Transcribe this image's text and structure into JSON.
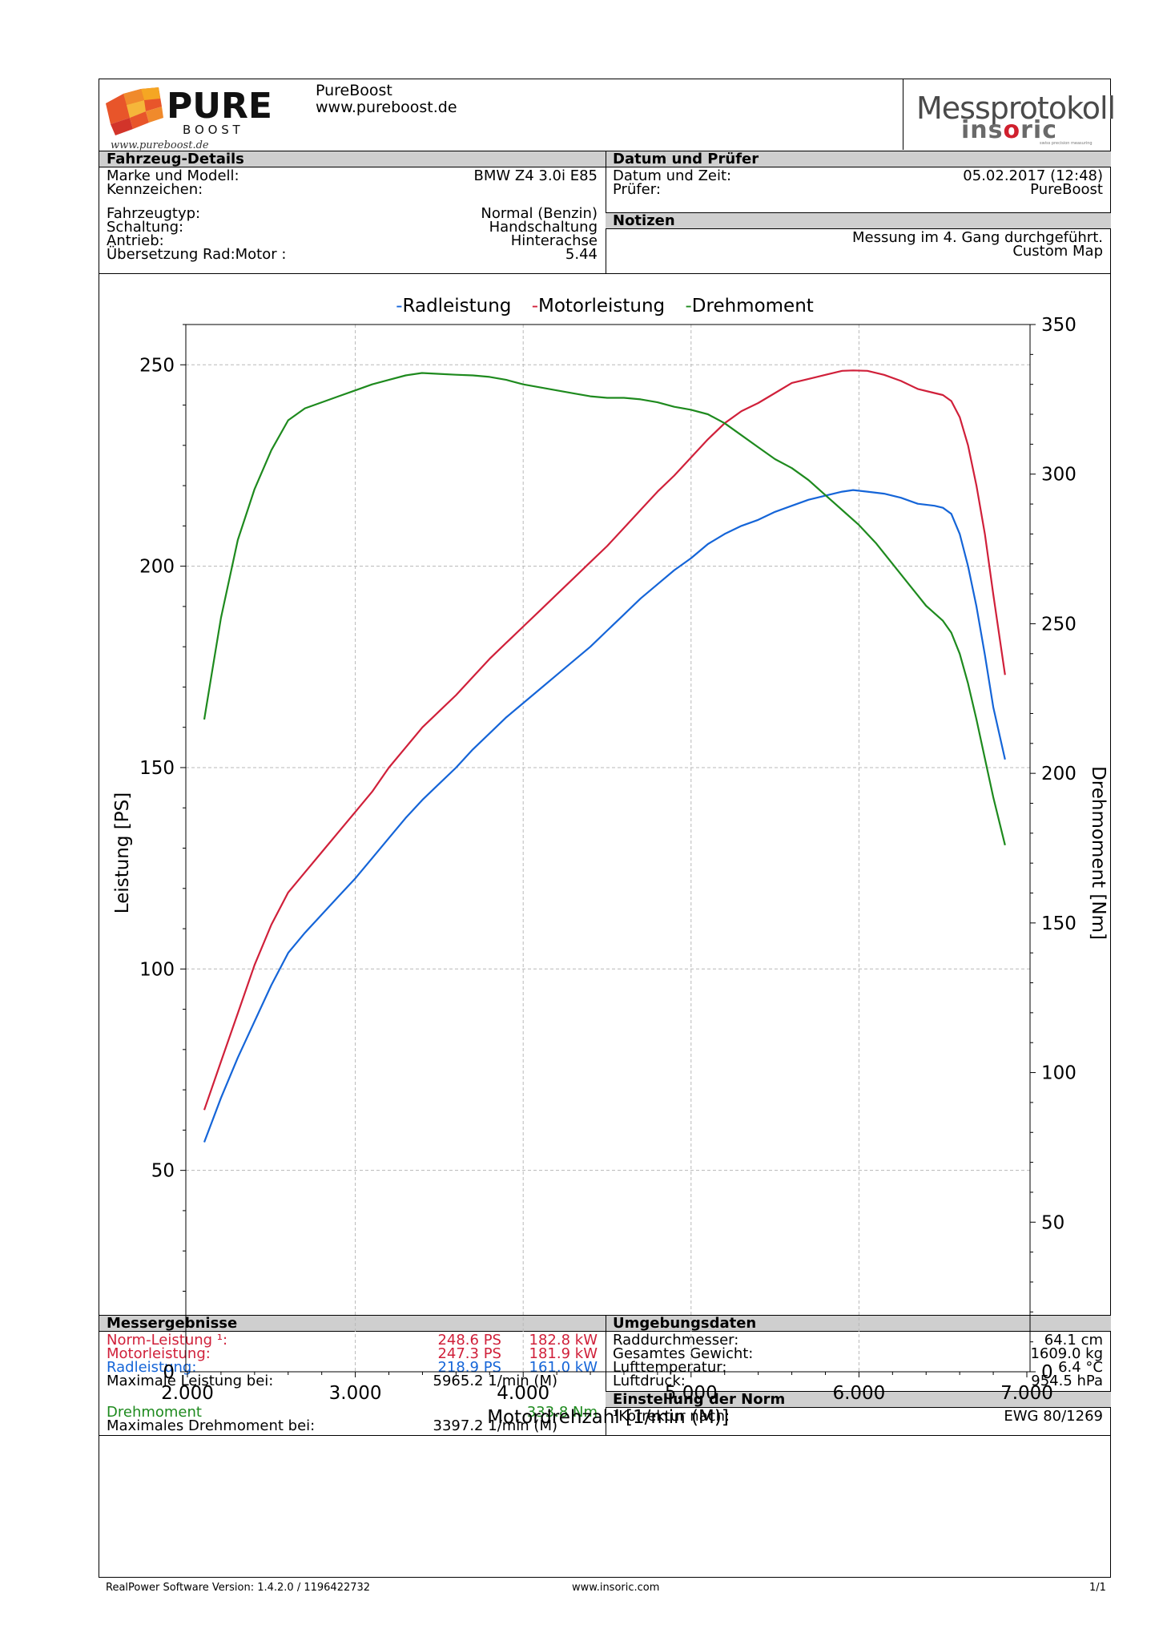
{
  "header": {
    "company_name": "PureBoost",
    "company_url": "www.pureboost.de",
    "logo_word": "PURE",
    "logo_sub": "B O O S T",
    "logo_script": "www.pureboost.de",
    "report_title": "Messprotokoll",
    "brand_pre": "ins",
    "brand_o": "o",
    "brand_post": "ric",
    "brand_tagline": "swiss precision measuring"
  },
  "vehicle": {
    "section_title": "Fahrzeug-Details",
    "rows": [
      {
        "label": "Marke und Modell:",
        "value": "BMW Z4 3.0i E85"
      },
      {
        "label": "Kennzeichen:",
        "value": ""
      },
      {
        "label": "Fahrzeugtyp:",
        "value": "Normal (Benzin)"
      },
      {
        "label": "Schaltung:",
        "value": "Handschaltung"
      },
      {
        "label": "Antrieb:",
        "value": "Hinterachse"
      },
      {
        "label": "Übersetzung Rad:Motor :",
        "value": "5.44"
      }
    ]
  },
  "date_section": {
    "section_title": "Datum und Prüfer",
    "rows": [
      {
        "label": "Datum und Zeit:",
        "value": "05.02.2017 (12:48)"
      },
      {
        "label": "Prüfer:",
        "value": "PureBoost"
      }
    ]
  },
  "notes": {
    "section_title": "Notizen",
    "lines": [
      "Messung im 4. Gang durchgeführt.",
      "Custom Map"
    ]
  },
  "chart_data": {
    "type": "line",
    "xlabel": "Motordrehzahl [1/min (M)]",
    "ylabel": "Leistung [PS]",
    "y2label": "Drehmoment [Nm]",
    "xlim": [
      2000,
      7000
    ],
    "ylim": [
      0,
      260
    ],
    "y2lim": [
      0,
      350
    ],
    "xticks": [
      {
        "v": 2000,
        "label": "2.000"
      },
      {
        "v": 3000,
        "label": "3.000"
      },
      {
        "v": 4000,
        "label": "4.000"
      },
      {
        "v": 5000,
        "label": "5.000"
      },
      {
        "v": 6000,
        "label": "6.000"
      },
      {
        "v": 7000,
        "label": "7.000"
      }
    ],
    "yticks": [
      0,
      50,
      100,
      150,
      200,
      250
    ],
    "y2ticks": [
      0,
      50,
      100,
      150,
      200,
      250,
      300,
      350
    ],
    "grid": true,
    "legend_position": "top-center",
    "series": [
      {
        "name": "Radleistung",
        "axis": "left",
        "color": "#1565d8",
        "points": [
          [
            2100,
            57
          ],
          [
            2200,
            68
          ],
          [
            2300,
            78
          ],
          [
            2400,
            87
          ],
          [
            2500,
            96
          ],
          [
            2600,
            104
          ],
          [
            2700,
            109
          ],
          [
            2800,
            113.5
          ],
          [
            2900,
            118
          ],
          [
            3000,
            122.5
          ],
          [
            3100,
            127.5
          ],
          [
            3200,
            132.5
          ],
          [
            3300,
            137.5
          ],
          [
            3400,
            142
          ],
          [
            3500,
            146
          ],
          [
            3600,
            150
          ],
          [
            3700,
            154.5
          ],
          [
            3800,
            158.5
          ],
          [
            3900,
            162.5
          ],
          [
            4000,
            166
          ],
          [
            4100,
            169.5
          ],
          [
            4200,
            173
          ],
          [
            4300,
            176.5
          ],
          [
            4400,
            180
          ],
          [
            4500,
            184
          ],
          [
            4600,
            188
          ],
          [
            4700,
            192
          ],
          [
            4800,
            195.5
          ],
          [
            4900,
            199
          ],
          [
            5000,
            202
          ],
          [
            5100,
            205.5
          ],
          [
            5200,
            208
          ],
          [
            5300,
            210
          ],
          [
            5400,
            211.5
          ],
          [
            5500,
            213.5
          ],
          [
            5600,
            215
          ],
          [
            5700,
            216.5
          ],
          [
            5800,
            217.5
          ],
          [
            5900,
            218.5
          ],
          [
            5965,
            218.9
          ],
          [
            6050,
            218.5
          ],
          [
            6150,
            218
          ],
          [
            6250,
            217
          ],
          [
            6350,
            215.5
          ],
          [
            6450,
            215
          ],
          [
            6500,
            214.5
          ],
          [
            6550,
            213
          ],
          [
            6600,
            208
          ],
          [
            6650,
            200
          ],
          [
            6700,
            190
          ],
          [
            6750,
            178
          ],
          [
            6800,
            165
          ],
          [
            6870,
            152
          ]
        ]
      },
      {
        "name": "Motorleistung",
        "axis": "left",
        "color": "#d0203a",
        "points": [
          [
            2100,
            65
          ],
          [
            2200,
            77
          ],
          [
            2300,
            89
          ],
          [
            2400,
            101
          ],
          [
            2500,
            111
          ],
          [
            2600,
            119
          ],
          [
            2700,
            124
          ],
          [
            2800,
            129
          ],
          [
            2900,
            134
          ],
          [
            3000,
            139
          ],
          [
            3100,
            144
          ],
          [
            3200,
            150
          ],
          [
            3300,
            155
          ],
          [
            3400,
            160
          ],
          [
            3500,
            164
          ],
          [
            3600,
            168
          ],
          [
            3700,
            172.5
          ],
          [
            3800,
            177
          ],
          [
            3900,
            181
          ],
          [
            4000,
            185
          ],
          [
            4100,
            189
          ],
          [
            4200,
            193
          ],
          [
            4300,
            197
          ],
          [
            4400,
            201
          ],
          [
            4500,
            205
          ],
          [
            4600,
            209.5
          ],
          [
            4700,
            214
          ],
          [
            4800,
            218.5
          ],
          [
            4900,
            222.5
          ],
          [
            5000,
            227
          ],
          [
            5100,
            231.5
          ],
          [
            5200,
            235.5
          ],
          [
            5300,
            238.5
          ],
          [
            5400,
            240.5
          ],
          [
            5500,
            243
          ],
          [
            5600,
            245.5
          ],
          [
            5700,
            246.5
          ],
          [
            5800,
            247.5
          ],
          [
            5900,
            248.5
          ],
          [
            5965,
            248.6
          ],
          [
            6050,
            248.5
          ],
          [
            6150,
            247.5
          ],
          [
            6250,
            246
          ],
          [
            6350,
            244
          ],
          [
            6450,
            243
          ],
          [
            6500,
            242.5
          ],
          [
            6550,
            241
          ],
          [
            6600,
            237
          ],
          [
            6650,
            230
          ],
          [
            6700,
            220
          ],
          [
            6750,
            208
          ],
          [
            6800,
            193
          ],
          [
            6870,
            173
          ]
        ]
      },
      {
        "name": "Drehmoment",
        "axis": "right",
        "color": "#1e8a1e",
        "points": [
          [
            2100,
            218
          ],
          [
            2150,
            235
          ],
          [
            2200,
            252
          ],
          [
            2300,
            278
          ],
          [
            2400,
            295
          ],
          [
            2500,
            308
          ],
          [
            2600,
            318
          ],
          [
            2700,
            322
          ],
          [
            2800,
            324
          ],
          [
            2900,
            326
          ],
          [
            3000,
            328
          ],
          [
            3100,
            330
          ],
          [
            3200,
            331.5
          ],
          [
            3300,
            333
          ],
          [
            3397,
            333.8
          ],
          [
            3500,
            333.5
          ],
          [
            3600,
            333.2
          ],
          [
            3700,
            333
          ],
          [
            3800,
            332.5
          ],
          [
            3900,
            331.5
          ],
          [
            4000,
            330
          ],
          [
            4100,
            329
          ],
          [
            4200,
            328
          ],
          [
            4300,
            327
          ],
          [
            4400,
            326
          ],
          [
            4500,
            325.5
          ],
          [
            4600,
            325.5
          ],
          [
            4700,
            325
          ],
          [
            4800,
            324
          ],
          [
            4900,
            322.5
          ],
          [
            5000,
            321.5
          ],
          [
            5100,
            320
          ],
          [
            5200,
            317
          ],
          [
            5300,
            313
          ],
          [
            5400,
            309
          ],
          [
            5500,
            305
          ],
          [
            5600,
            302
          ],
          [
            5700,
            298
          ],
          [
            5800,
            293
          ],
          [
            5900,
            288
          ],
          [
            6000,
            283
          ],
          [
            6100,
            277
          ],
          [
            6200,
            270
          ],
          [
            6300,
            263
          ],
          [
            6400,
            256
          ],
          [
            6500,
            251
          ],
          [
            6550,
            247
          ],
          [
            6600,
            240
          ],
          [
            6650,
            230
          ],
          [
            6700,
            218
          ],
          [
            6750,
            205
          ],
          [
            6800,
            192
          ],
          [
            6870,
            176
          ]
        ]
      }
    ]
  },
  "results": {
    "section_title": "Messergebnisse",
    "rows": [
      {
        "label": "Norm-Leistung ¹:",
        "ps": "248.6 PS",
        "kw": "182.8 kW",
        "color": "#d0203a"
      },
      {
        "label": "Motorleistung:",
        "ps": "247.3 PS",
        "kw": "181.9 kW",
        "color": "#d0203a"
      },
      {
        "label": "Radleistung:",
        "ps": "218.9 PS",
        "kw": "161.0 kW",
        "color": "#1565d8"
      }
    ],
    "max_power_label": "Maximale Leistung bei:",
    "max_power_value": "5965.2 1/min (M)",
    "torque_label": "Drehmoment",
    "torque_value": "333.8 Nm",
    "max_torque_label": "Maximales Drehmoment bei:",
    "max_torque_value": "3397.2 1/min (M)"
  },
  "environment": {
    "section_title": "Umgebungsdaten",
    "rows": [
      {
        "label": "Raddurchmesser:",
        "value": "64.1 cm"
      },
      {
        "label": "Gesamtes Gewicht:",
        "value": "1609.0 kg"
      },
      {
        "label": "Lufttemperatur:",
        "value": "6.4 °C"
      },
      {
        "label": "Luftdruck:",
        "value": "954.5 hPa"
      }
    ]
  },
  "norm": {
    "section_title": "Einstellung der Norm",
    "label": "¹Korrektur nach:",
    "value": "EWG 80/1269"
  },
  "footer": {
    "version": "RealPower Software Version: 1.4.2.0 / 1196422732",
    "url": "www.insoric.com",
    "page": "1/1"
  }
}
